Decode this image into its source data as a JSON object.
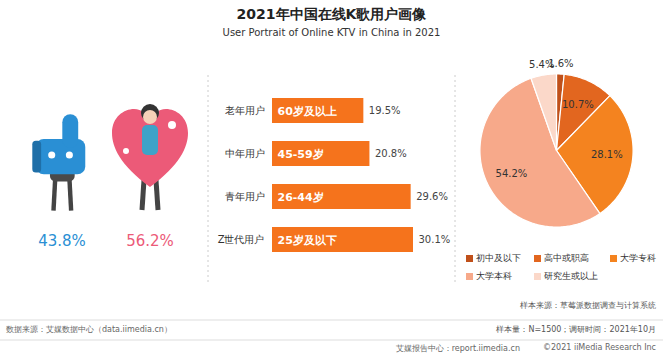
{
  "title": "2021年中国在线K歌用户画像",
  "subtitle": "User Portrait of Online KTV in China in 2021",
  "chart_data": [
    {
      "type": "pictogram",
      "values": [
        43.8,
        56.2
      ],
      "value_labels": [
        "43.8%",
        "56.2%"
      ],
      "colors": [
        "#2a8fd4",
        "#ec5a78"
      ],
      "data_labels": true
    },
    {
      "type": "bar",
      "orientation": "horizontal",
      "categories": [
        "老年用户",
        "中年用户",
        "青年用户",
        "Z世代用户"
      ],
      "annotations": [
        "60岁及以上",
        "45-59岁",
        "26-44岁",
        "25岁及以下"
      ],
      "values": [
        19.5,
        20.8,
        29.6,
        30.1
      ],
      "value_labels": [
        "19.5%",
        "20.8%",
        "29.6%",
        "30.1%"
      ],
      "color": "#f5731c",
      "data_labels": true,
      "tick_labels": "y"
    },
    {
      "type": "pie",
      "categories": [
        "初中及以下",
        "高中或职高",
        "大学专科",
        "大学本科",
        "研究生或以上"
      ],
      "values": [
        1.6,
        10.7,
        28.1,
        54.2,
        5.4
      ],
      "value_labels": [
        "1.6%",
        "10.7%",
        "28.1%",
        "54.2%",
        "5.4%"
      ],
      "colors": [
        "#c0501a",
        "#e2661f",
        "#f4831f",
        "#f7a98a",
        "#fbd8c9"
      ],
      "legend": "bottom",
      "data_labels": true
    }
  ],
  "footer": {
    "source": "数据来源：艾媒数据中心（data.iimedia.cn）",
    "sample_source": "样本来源：草莓派数据调查与计算系统",
    "sample_size": "样本量：N=1500；调研时间：2021年10月",
    "brand": "艾媒报告中心：report.iimedia.cn",
    "copyright": "©2021  iiMedia Research Inc"
  }
}
